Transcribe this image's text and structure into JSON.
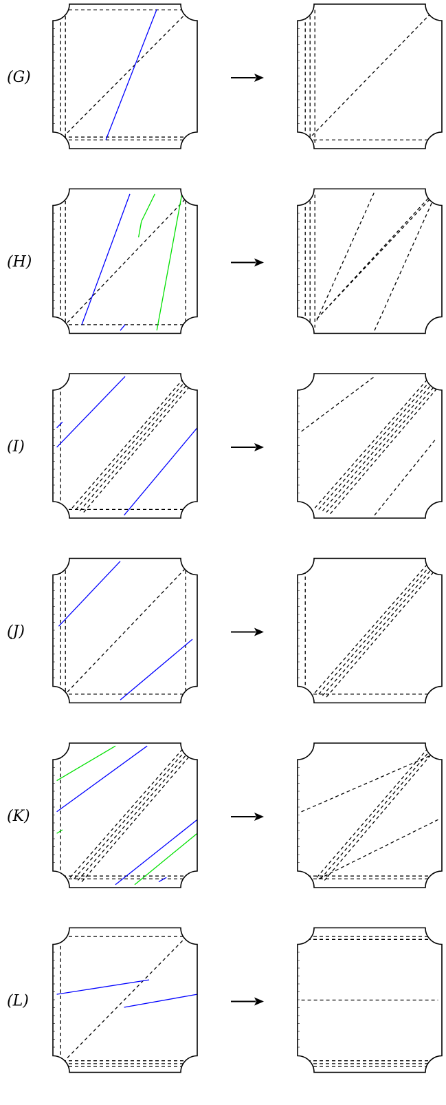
{
  "rows": [
    {
      "label": "(G)",
      "left": {
        "dashed": [
          [
            [
              -0.42,
              0.92
            ],
            [
              -0.42,
              -0.92
            ]
          ],
          [
            [
              -0.37,
              0.92
            ],
            [
              -0.37,
              -0.92
            ]
          ],
          [
            [
              -0.4,
              0.92
            ],
            [
              0.9,
              0.92
            ]
          ],
          [
            [
              -0.4,
              -0.88
            ],
            [
              0.9,
              -0.88
            ]
          ],
          [
            [
              -0.4,
              -0.84
            ],
            [
              0.9,
              -0.84
            ]
          ],
          [
            [
              -0.35,
              -0.78
            ],
            [
              0.92,
              0.92
            ]
          ]
        ],
        "blue": [
          [
            [
              0.05,
              -0.88
            ],
            [
              0.58,
              0.93
            ]
          ]
        ],
        "green": []
      },
      "right": {
        "dashed": [
          [
            [
              -0.42,
              0.92
            ],
            [
              -0.42,
              -0.92
            ]
          ],
          [
            [
              -0.37,
              0.92
            ],
            [
              -0.37,
              -0.92
            ]
          ],
          [
            [
              -0.32,
              0.92
            ],
            [
              -0.32,
              -0.92
            ]
          ],
          [
            [
              -0.35,
              -0.82
            ],
            [
              0.92,
              0.92
            ]
          ],
          [
            [
              -0.4,
              -0.88
            ],
            [
              0.9,
              -0.88
            ]
          ]
        ]
      }
    },
    {
      "label": "(H)",
      "left": {
        "dashed": [
          [
            [
              -0.42,
              0.92
            ],
            [
              -0.42,
              -0.92
            ]
          ],
          [
            [
              -0.37,
              0.92
            ],
            [
              -0.37,
              -0.92
            ]
          ],
          [
            [
              0.88,
              0.92
            ],
            [
              0.88,
              -0.92
            ]
          ],
          [
            [
              -0.4,
              -0.88
            ],
            [
              0.88,
              -0.88
            ]
          ],
          [
            [
              -0.35,
              -0.85
            ],
            [
              0.92,
              0.92
            ]
          ]
        ],
        "blue": [
          [
            [
              -0.2,
              -0.88
            ],
            [
              0.3,
              0.93
            ]
          ],
          [
            [
              0.2,
              -0.96
            ],
            [
              0.25,
              -0.88
            ]
          ]
        ],
        "green": [
          [
            [
              0.58,
              -0.96
            ],
            [
              0.84,
              0.92
            ]
          ],
          [
            [
              0.39,
              0.33
            ],
            [
              0.42,
              0.55
            ]
          ],
          [
            [
              0.42,
              0.55
            ],
            [
              0.56,
              0.93
            ]
          ]
        ]
      },
      "right": {
        "dashed": [
          [
            [
              -0.42,
              0.92
            ],
            [
              -0.42,
              -0.92
            ]
          ],
          [
            [
              -0.37,
              0.92
            ],
            [
              -0.37,
              -0.92
            ]
          ],
          [
            [
              -0.32,
              0.92
            ],
            [
              -0.32,
              -0.92
            ]
          ],
          [
            [
              -0.3,
              -0.8
            ],
            [
              0.92,
              0.92
            ]
          ],
          [
            [
              -0.3,
              -0.8
            ],
            [
              0.9,
              0.93
            ]
          ],
          [
            [
              -0.3,
              -0.82
            ],
            [
              0.3,
              0.96
            ]
          ],
          [
            [
              0.3,
              -0.96
            ],
            [
              0.92,
              0.88
            ]
          ]
        ]
      }
    },
    {
      "label": "(I)",
      "left": {
        "dashed": [
          [
            [
              -0.42,
              0.92
            ],
            [
              -0.42,
              -0.92
            ]
          ],
          [
            [
              -0.4,
              -0.88
            ],
            [
              0.9,
              -0.88
            ]
          ],
          [
            [
              -0.3,
              -0.86
            ],
            [
              0.85,
              0.92
            ]
          ],
          [
            [
              -0.26,
              -0.88
            ],
            [
              0.88,
              0.9
            ]
          ],
          [
            [
              -0.22,
              -0.9
            ],
            [
              0.9,
              0.86
            ]
          ],
          [
            [
              -0.18,
              -0.92
            ],
            [
              0.92,
              0.82
            ]
          ]
        ],
        "blue": [
          [
            [
              -0.46,
              -0.02
            ],
            [
              0.25,
              0.96
            ]
          ],
          [
            [
              -0.46,
              0.25
            ],
            [
              -0.4,
              0.33
            ]
          ],
          [
            [
              0.24,
              -0.96
            ],
            [
              1.0,
              0.25
            ]
          ]
        ],
        "green": []
      },
      "right": {
        "dashed": [
          [
            [
              -0.46,
              0.2
            ],
            [
              0.3,
              0.96
            ]
          ],
          [
            [
              -0.32,
              -0.86
            ],
            [
              0.85,
              0.92
            ]
          ],
          [
            [
              -0.28,
              -0.88
            ],
            [
              0.88,
              0.9
            ]
          ],
          [
            [
              -0.24,
              -0.9
            ],
            [
              0.9,
              0.86
            ]
          ],
          [
            [
              -0.2,
              -0.92
            ],
            [
              0.92,
              0.82
            ]
          ],
          [
            [
              -0.16,
              -0.94
            ],
            [
              0.94,
              0.78
            ]
          ],
          [
            [
              0.3,
              -0.96
            ],
            [
              0.94,
              0.1
            ]
          ]
        ]
      }
    },
    {
      "label": "(J)",
      "left": {
        "dashed": [
          [
            [
              -0.42,
              0.92
            ],
            [
              -0.42,
              -0.92
            ]
          ],
          [
            [
              -0.37,
              0.92
            ],
            [
              -0.37,
              -0.92
            ]
          ],
          [
            [
              0.88,
              0.92
            ],
            [
              0.88,
              -0.92
            ]
          ],
          [
            [
              -0.4,
              -0.88
            ],
            [
              0.9,
              -0.88
            ]
          ],
          [
            [
              -0.35,
              -0.85
            ],
            [
              0.92,
              0.92
            ]
          ]
        ],
        "blue": [
          [
            [
              -0.44,
              0.06
            ],
            [
              0.2,
              0.96
            ]
          ],
          [
            [
              0.2,
              -0.96
            ],
            [
              0.95,
              -0.12
            ]
          ]
        ],
        "green": []
      },
      "right": {
        "dashed": [
          [
            [
              -0.42,
              0.92
            ],
            [
              -0.42,
              -0.92
            ]
          ],
          [
            [
              -0.4,
              -0.88
            ],
            [
              0.9,
              -0.88
            ]
          ],
          [
            [
              -0.32,
              -0.86
            ],
            [
              0.85,
              0.92
            ]
          ],
          [
            [
              -0.28,
              -0.88
            ],
            [
              0.88,
              0.9
            ]
          ],
          [
            [
              -0.24,
              -0.9
            ],
            [
              0.9,
              0.86
            ]
          ],
          [
            [
              -0.2,
              -0.92
            ],
            [
              0.92,
              0.82
            ]
          ]
        ]
      }
    },
    {
      "label": "(K)",
      "left": {
        "dashed": [
          [
            [
              -0.42,
              0.92
            ],
            [
              -0.42,
              -0.92
            ]
          ],
          [
            [
              -0.4,
              -0.88
            ],
            [
              0.9,
              -0.88
            ]
          ],
          [
            [
              -0.4,
              -0.84
            ],
            [
              0.9,
              -0.84
            ]
          ],
          [
            [
              -0.32,
              -0.86
            ],
            [
              0.85,
              0.92
            ]
          ],
          [
            [
              -0.28,
              -0.88
            ],
            [
              0.88,
              0.9
            ]
          ],
          [
            [
              -0.24,
              -0.9
            ],
            [
              0.9,
              0.86
            ]
          ],
          [
            [
              -0.2,
              -0.92
            ],
            [
              0.92,
              0.82
            ]
          ]
        ],
        "blue": [
          [
            [
              -0.46,
              0.05
            ],
            [
              0.48,
              0.96
            ]
          ],
          [
            [
              0.15,
              -0.96
            ],
            [
              1.0,
              -0.06
            ]
          ],
          [
            [
              0.6,
              -0.92
            ],
            [
              0.68,
              -0.86
            ]
          ]
        ],
        "green": [
          [
            [
              -0.46,
              0.48
            ],
            [
              0.15,
              0.96
            ]
          ],
          [
            [
              -0.46,
              -0.25
            ],
            [
              -0.4,
              -0.2
            ]
          ],
          [
            [
              0.35,
              -0.96
            ],
            [
              1.0,
              -0.25
            ]
          ]
        ]
      },
      "right": {
        "dashed": [
          [
            [
              -0.46,
              0.05
            ],
            [
              0.92,
              0.85
            ]
          ],
          [
            [
              -0.3,
              -0.86
            ],
            [
              0.85,
              0.92
            ]
          ],
          [
            [
              -0.26,
              -0.88
            ],
            [
              0.88,
              0.9
            ]
          ],
          [
            [
              -0.22,
              -0.9
            ],
            [
              0.9,
              0.86
            ]
          ],
          [
            [
              -0.28,
              -0.88
            ],
            [
              0.96,
              -0.06
            ]
          ],
          [
            [
              -0.4,
              -0.88
            ],
            [
              0.9,
              -0.88
            ]
          ],
          [
            [
              -0.4,
              -0.84
            ],
            [
              0.9,
              -0.84
            ]
          ]
        ]
      }
    },
    {
      "label": "(L)",
      "left": {
        "dashed": [
          [
            [
              -0.42,
              0.92
            ],
            [
              -0.42,
              -0.92
            ]
          ],
          [
            [
              -0.4,
              0.88
            ],
            [
              0.9,
              0.88
            ]
          ],
          [
            [
              -0.4,
              -0.84
            ],
            [
              0.9,
              -0.84
            ]
          ],
          [
            [
              -0.4,
              -0.88
            ],
            [
              0.9,
              -0.88
            ]
          ],
          [
            [
              -0.4,
              -0.92
            ],
            [
              0.9,
              -0.92
            ]
          ],
          [
            [
              -0.35,
              -0.8
            ],
            [
              0.92,
              0.92
            ]
          ]
        ],
        "blue": [
          [
            [
              -0.46,
              0.08
            ],
            [
              0.5,
              0.28
            ]
          ],
          [
            [
              0.24,
              -0.1
            ],
            [
              1.0,
              0.08
            ]
          ]
        ],
        "green": []
      },
      "right": {
        "dashed": [
          [
            [
              -0.4,
              0.88
            ],
            [
              0.9,
              0.88
            ]
          ],
          [
            [
              -0.4,
              0.84
            ],
            [
              0.9,
              0.84
            ]
          ],
          [
            [
              -0.46,
              0.0
            ],
            [
              0.96,
              0.0
            ]
          ],
          [
            [
              -0.4,
              -0.84
            ],
            [
              0.9,
              -0.84
            ]
          ],
          [
            [
              -0.4,
              -0.88
            ],
            [
              0.9,
              -0.88
            ]
          ],
          [
            [
              -0.4,
              -0.92
            ],
            [
              0.9,
              -0.92
            ]
          ]
        ]
      }
    }
  ]
}
